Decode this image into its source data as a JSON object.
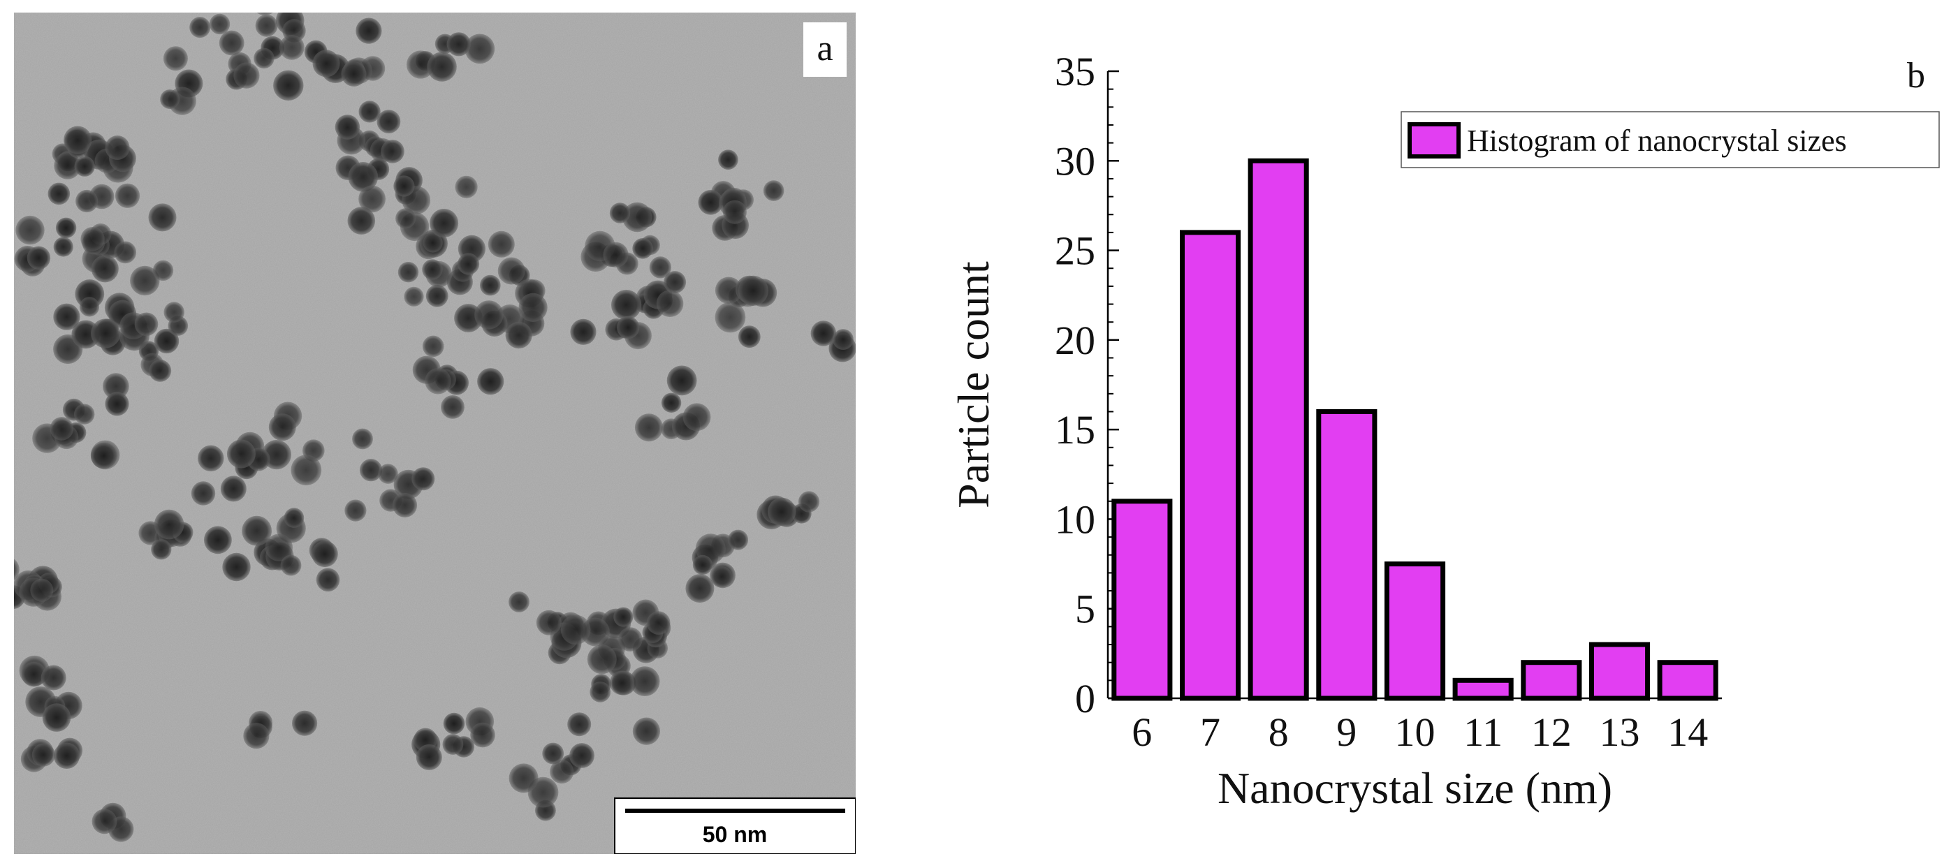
{
  "panel_a": {
    "letter": "a",
    "scale_bar_label": "50 nm"
  },
  "panel_b": {
    "letter": "b"
  },
  "chart_data": {
    "type": "bar",
    "categories": [
      "6",
      "7",
      "8",
      "9",
      "10",
      "11",
      "12",
      "13",
      "14"
    ],
    "series": [
      {
        "name": "Histogram of nanocrystal sizes",
        "values": [
          11,
          26,
          30,
          16,
          7.5,
          1,
          2,
          3,
          2
        ]
      }
    ],
    "xlabel": "Nanocrystal size (nm)",
    "ylabel": "Particle count",
    "ylim": [
      0,
      35
    ],
    "yticks": [
      0,
      5,
      10,
      15,
      20,
      25,
      30,
      35
    ],
    "grid": false,
    "legend": "top-right",
    "bar_color": "#e23ef2",
    "bar_edge_color": "#000000"
  }
}
